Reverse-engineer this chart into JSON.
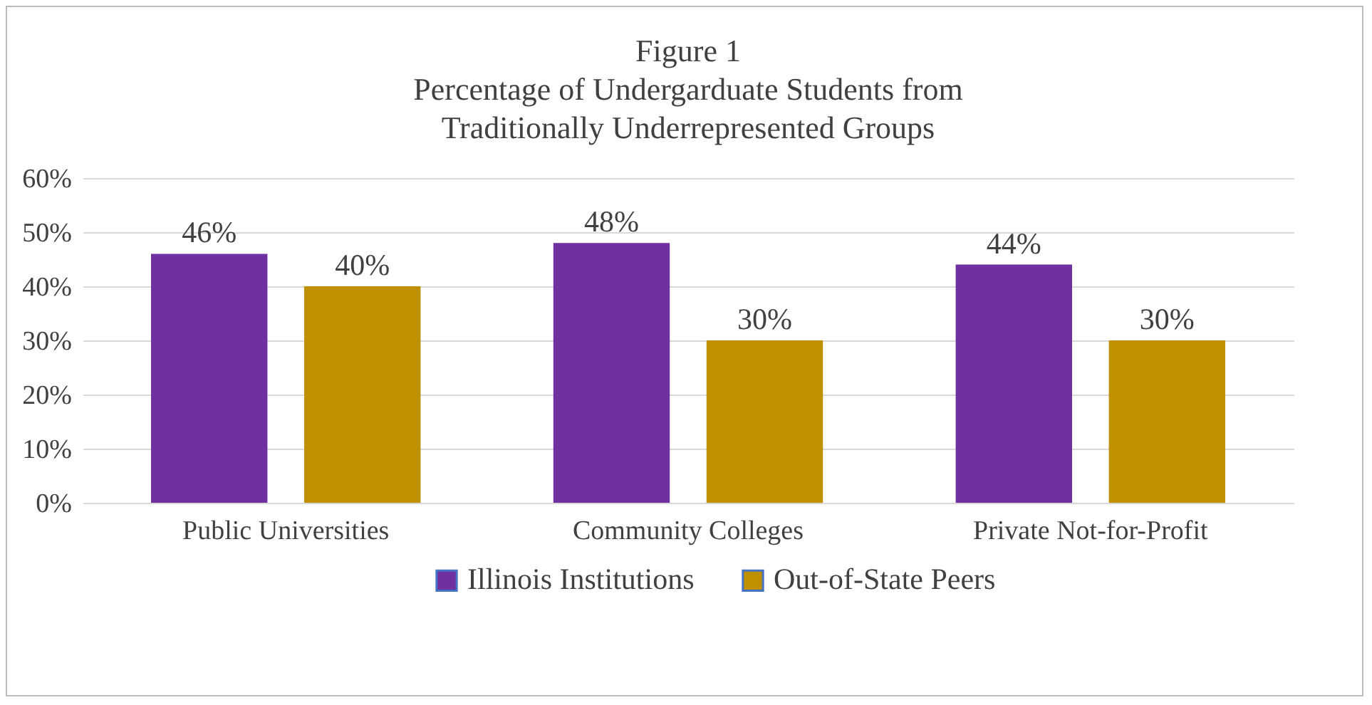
{
  "chart_data": {
    "type": "bar",
    "title": "Figure 1\nPercentage of Undergarduate Students from\nTraditionally Underrepresented Groups",
    "categories": [
      "Public Universities",
      "Community Colleges",
      "Private Not-for-Profit"
    ],
    "series": [
      {
        "name": "Illinois Institutions",
        "color": "#7030a0",
        "values": [
          46,
          48,
          44
        ],
        "value_labels": [
          "46%",
          "48%",
          "44%"
        ]
      },
      {
        "name": "Out-of-State Peers",
        "color": "#bf9000",
        "values": [
          40,
          30,
          30
        ],
        "value_labels": [
          "40%",
          "30%",
          "30%"
        ]
      }
    ],
    "ylim": [
      0,
      60
    ],
    "yticks": [
      {
        "value": 0,
        "label": "0%"
      },
      {
        "value": 10,
        "label": "10%"
      },
      {
        "value": 20,
        "label": "20%"
      },
      {
        "value": 30,
        "label": "30%"
      },
      {
        "value": 40,
        "label": "40%"
      },
      {
        "value": 50,
        "label": "50%"
      },
      {
        "value": 60,
        "label": "60%"
      }
    ],
    "grid": "y",
    "legend": "bottom"
  }
}
